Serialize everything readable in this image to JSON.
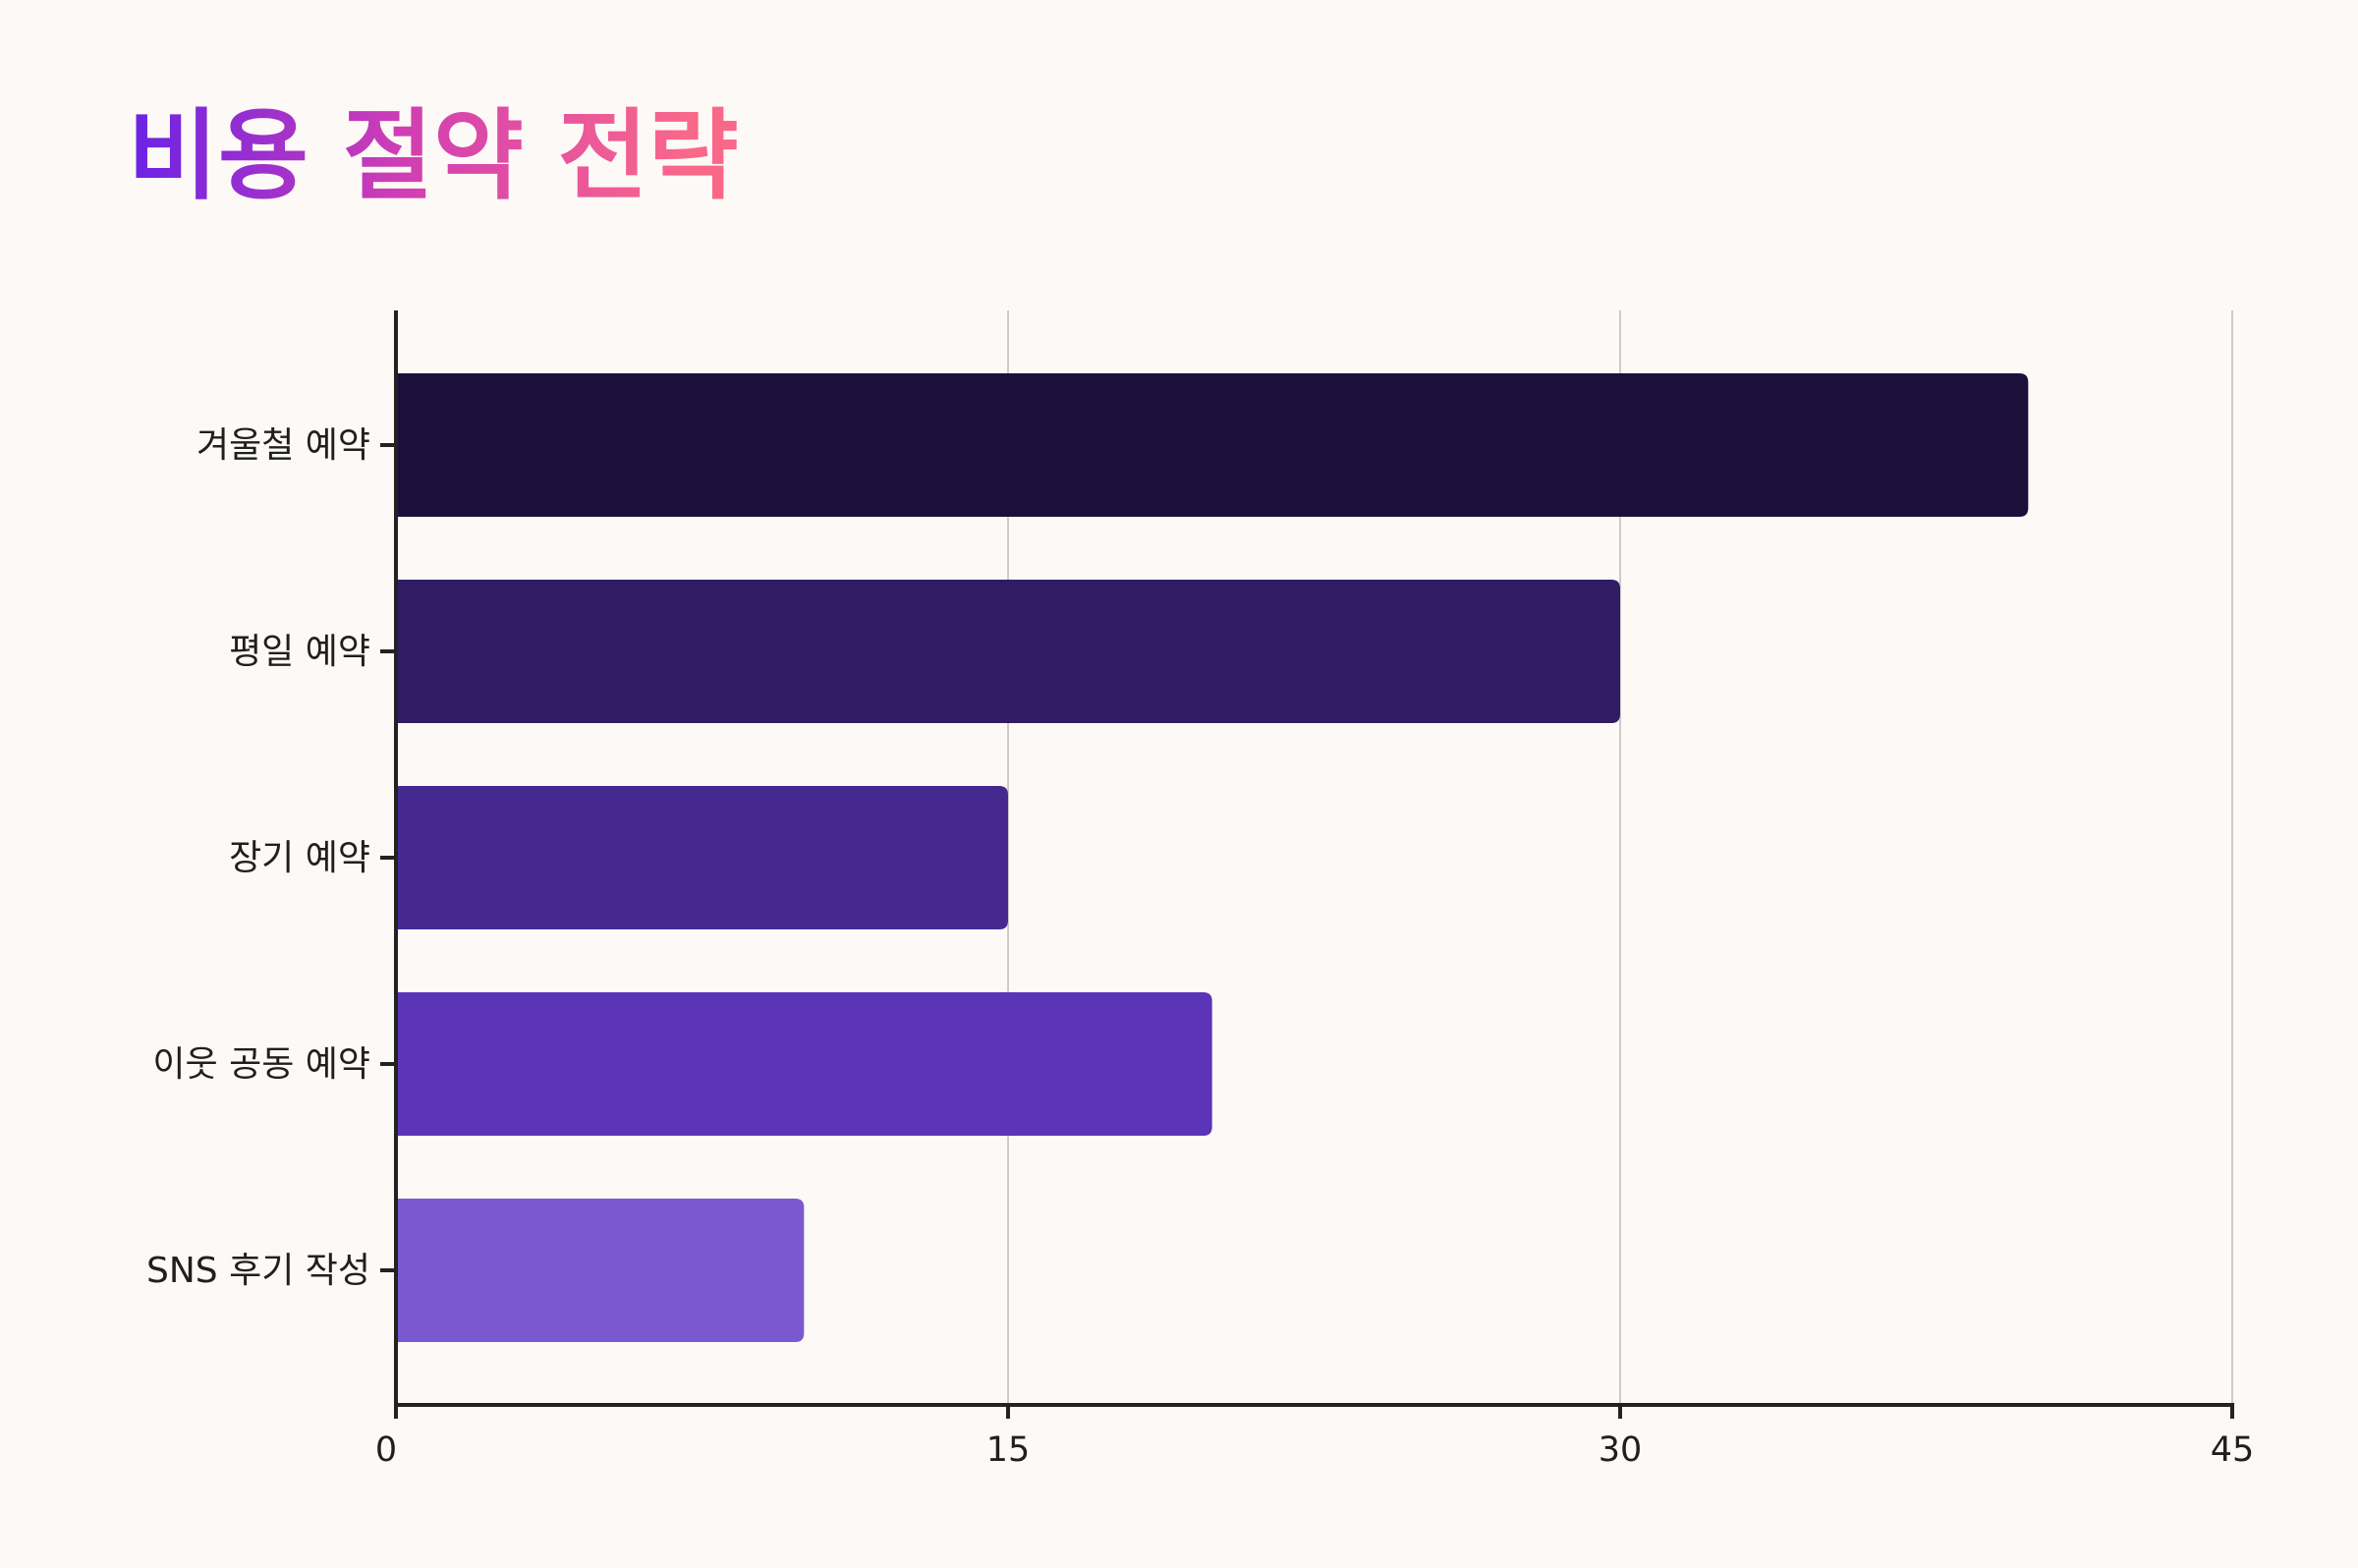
{
  "chart_data": {
    "type": "bar",
    "orientation": "horizontal",
    "title": "비용 절약 전략",
    "xlabel": "",
    "ylabel": "",
    "categories": [
      "겨울철 예약",
      "평일 예약",
      "장기 예약",
      "이웃 공동 예약",
      "SNS 후기 작성"
    ],
    "values": [
      40,
      30,
      15,
      20,
      10
    ],
    "xlim": [
      0,
      45
    ],
    "xticks": [
      0,
      15,
      30,
      45
    ],
    "grid": "vertical",
    "legend": "none",
    "bar_colors": [
      "#1c103b",
      "#311c63",
      "#46298f",
      "#5b34b8",
      "#7b58cf"
    ],
    "title_gradient": [
      "#6a22e6",
      "#d23fb3",
      "#fa6889"
    ]
  }
}
